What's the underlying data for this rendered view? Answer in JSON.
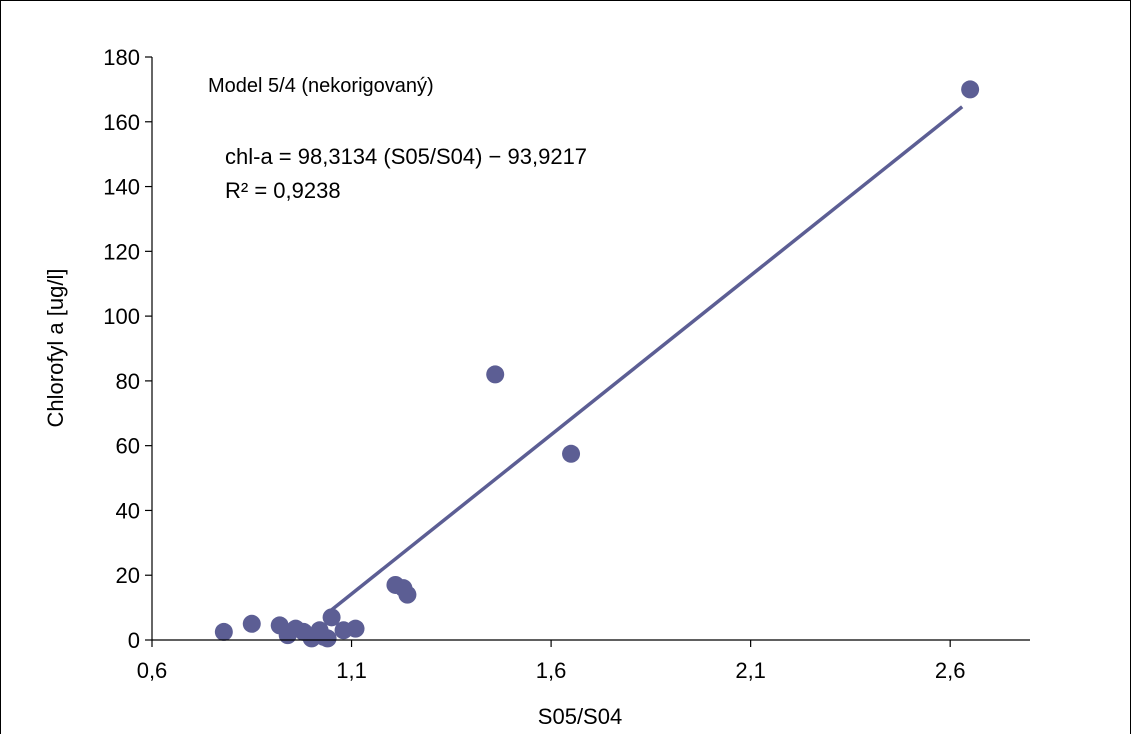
{
  "chart_data": {
    "type": "scatter",
    "title": "Model 5/4 (nekorigovaný)",
    "xlabel": "S05/S04",
    "ylabel": "Chlorofyl a [ug/l]",
    "xlim": [
      0.6,
      2.8
    ],
    "ylim": [
      0,
      180
    ],
    "xticks": [
      0.6,
      1.1,
      1.6,
      2.1,
      2.6
    ],
    "xtick_labels": [
      "0,6",
      "1,1",
      "1,6",
      "2,1",
      "2,6"
    ],
    "yticks": [
      0,
      20,
      40,
      60,
      80,
      100,
      120,
      140,
      160,
      180
    ],
    "ytick_labels": [
      "0",
      "20",
      "40",
      "60",
      "80",
      "100",
      "120",
      "140",
      "160",
      "180"
    ],
    "grid": false,
    "legend": "none",
    "colors": {
      "marker": "#5c5e94",
      "trendline": "#5c5e94",
      "axis": "#000000"
    },
    "series": [
      {
        "values": [
          {
            "x": 0.78,
            "y": 2.5
          },
          {
            "x": 0.85,
            "y": 5.0
          },
          {
            "x": 0.92,
            "y": 4.5
          },
          {
            "x": 0.94,
            "y": 1.5
          },
          {
            "x": 0.96,
            "y": 3.5
          },
          {
            "x": 0.98,
            "y": 2.5
          },
          {
            "x": 1.0,
            "y": 0.5
          },
          {
            "x": 1.02,
            "y": 3.0
          },
          {
            "x": 1.03,
            "y": 1.0
          },
          {
            "x": 1.04,
            "y": 0.5
          },
          {
            "x": 1.05,
            "y": 7.0
          },
          {
            "x": 1.08,
            "y": 3.0
          },
          {
            "x": 1.11,
            "y": 3.5
          },
          {
            "x": 1.21,
            "y": 17.0
          },
          {
            "x": 1.23,
            "y": 16.0
          },
          {
            "x": 1.24,
            "y": 14.0
          },
          {
            "x": 1.46,
            "y": 82.0
          },
          {
            "x": 1.65,
            "y": 57.5
          },
          {
            "x": 2.65,
            "y": 170.0
          }
        ]
      }
    ],
    "trendline": {
      "slope": 98.3134,
      "intercept": -93.9217,
      "x_range": [
        1.05,
        2.63
      ]
    },
    "annotations": {
      "equation": "chl-a = 98,3134 (S05/S04) − 93,9217",
      "r_squared": "R² = 0,9238"
    }
  }
}
